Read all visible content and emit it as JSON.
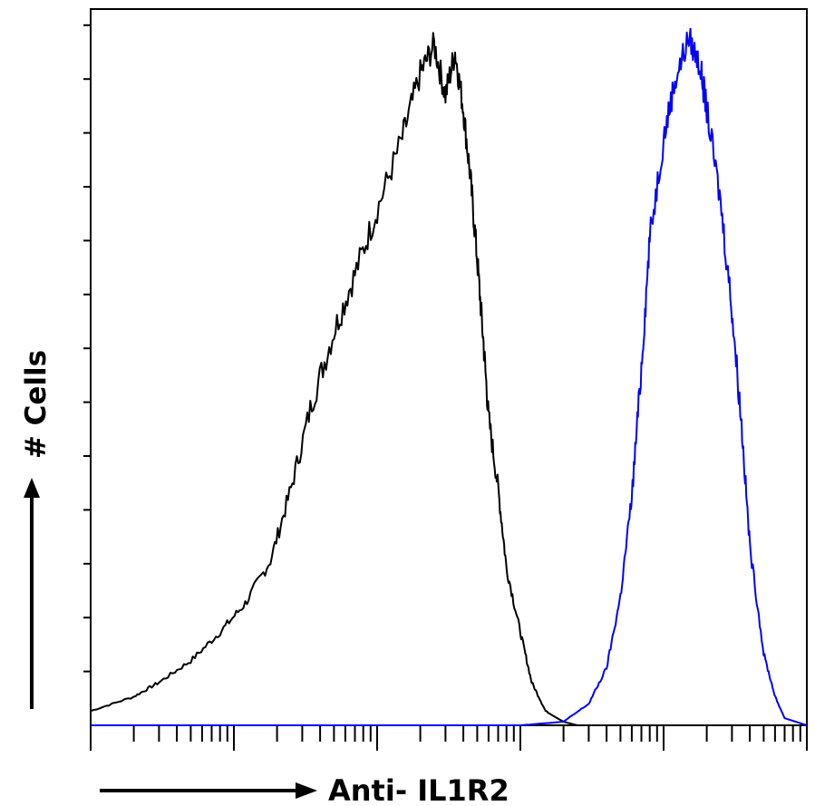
{
  "chart_data": {
    "type": "line",
    "title": "",
    "xlabel": "Anti- IL1R2",
    "ylabel": "# Cells",
    "x_scale": "log",
    "xlim": [
      1,
      100000
    ],
    "ylim": [
      0,
      100
    ],
    "grid": false,
    "legend": "none",
    "series": [
      {
        "color": "#000000",
        "x": [
          1,
          2,
          3,
          5,
          8,
          12,
          18,
          25,
          35,
          50,
          70,
          100,
          150,
          200,
          250,
          300,
          350,
          400,
          450,
          500,
          550,
          600,
          700,
          800,
          1000,
          1200,
          1500,
          2000,
          2500,
          3000,
          4000
        ],
        "y": [
          2,
          4,
          6,
          9,
          13,
          17,
          23,
          33,
          45,
          55,
          63,
          72,
          82,
          91,
          95,
          88,
          94,
          86,
          76,
          65,
          54,
          43,
          33,
          22,
          13,
          6,
          2,
          0.5,
          0,
          0,
          0
        ]
      },
      {
        "color": "#0000ff",
        "x": [
          1,
          1000,
          2000,
          3000,
          4000,
          5000,
          6000,
          7000,
          8000,
          10000,
          12000,
          15000,
          18000,
          20000,
          25000,
          30000,
          35000,
          40000,
          50000,
          60000,
          70000,
          100000
        ],
        "y": [
          0,
          0,
          0.5,
          3,
          8,
          18,
          32,
          50,
          68,
          82,
          90,
          96,
          92,
          86,
          73,
          58,
          42,
          25,
          10,
          4,
          1,
          0
        ]
      }
    ]
  }
}
